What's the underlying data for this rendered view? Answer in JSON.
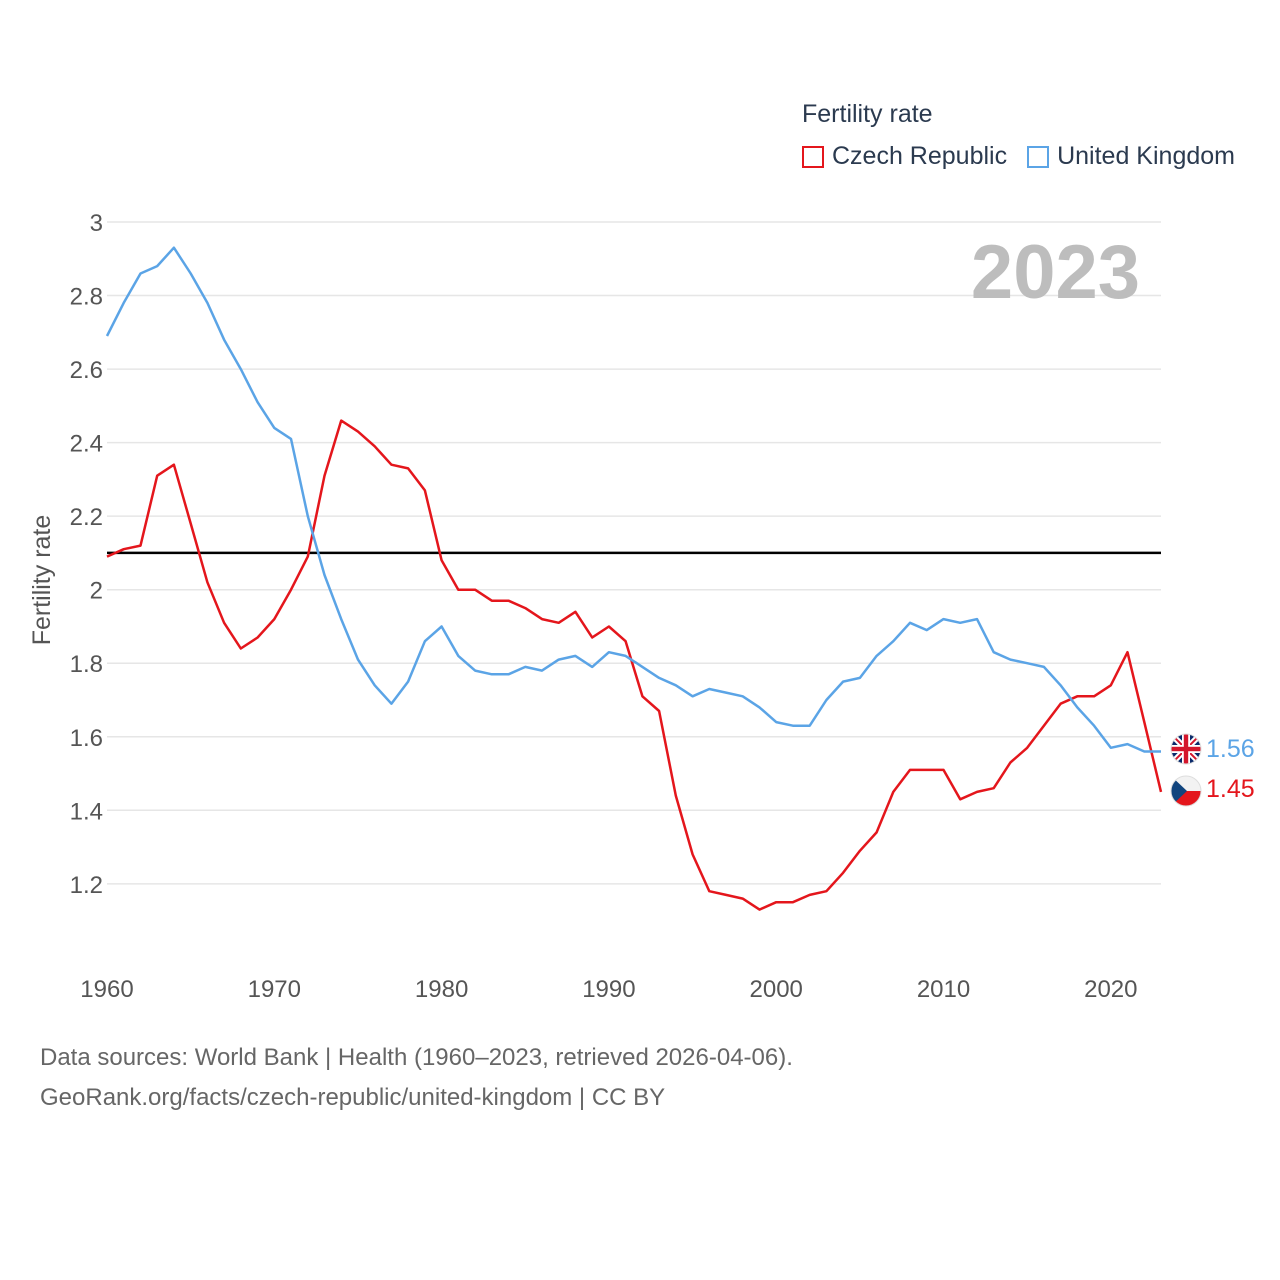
{
  "legend": {
    "title": "Fertility rate",
    "items": [
      {
        "label": "Czech Republic",
        "color": "#e4161c"
      },
      {
        "label": "United Kingdom",
        "color": "#5ba4e6"
      }
    ]
  },
  "year_label": "2023",
  "end_labels": {
    "uk": {
      "text": "1.56",
      "color": "#5ba4e6",
      "flag": "uk-flag-icon"
    },
    "cz": {
      "text": "1.45",
      "color": "#e4161c",
      "flag": "czech-flag-icon"
    }
  },
  "footer": {
    "line1": "Data sources: World Bank | Health (1960–2023, retrieved 2026-04-06).",
    "line2": "GeoRank.org/facts/czech-republic/united-kingdom | CC BY"
  },
  "chart_data": {
    "type": "line",
    "title": "Fertility rate",
    "xlabel": "",
    "ylabel": "Fertility rate",
    "xlim": [
      1960,
      2023
    ],
    "ylim": [
      1.05,
      3.0
    ],
    "x_ticks": [
      1960,
      1970,
      1980,
      1990,
      2000,
      2010,
      2020
    ],
    "y_ticks": [
      1.2,
      1.4,
      1.6,
      1.8,
      2,
      2.2,
      2.4,
      2.6,
      2.8,
      3
    ],
    "y_tick_labels": [
      "1.2",
      "1.4",
      "1.6",
      "1.8",
      "2",
      "2.2",
      "2.4",
      "2.6",
      "2.8",
      "3"
    ],
    "reference_line": {
      "y": 2.1,
      "color": "#000000"
    },
    "grid": true,
    "legend_position": "top-right",
    "x": [
      1960,
      1961,
      1962,
      1963,
      1964,
      1965,
      1966,
      1967,
      1968,
      1969,
      1970,
      1971,
      1972,
      1973,
      1974,
      1975,
      1976,
      1977,
      1978,
      1979,
      1980,
      1981,
      1982,
      1983,
      1984,
      1985,
      1986,
      1987,
      1988,
      1989,
      1990,
      1991,
      1992,
      1993,
      1994,
      1995,
      1996,
      1997,
      1998,
      1999,
      2000,
      2001,
      2002,
      2003,
      2004,
      2005,
      2006,
      2007,
      2008,
      2009,
      2010,
      2011,
      2012,
      2013,
      2014,
      2015,
      2016,
      2017,
      2018,
      2019,
      2020,
      2021,
      2022,
      2023
    ],
    "series": [
      {
        "name": "Czech Republic",
        "color": "#e4161c",
        "values": [
          2.09,
          2.11,
          2.12,
          2.31,
          2.34,
          2.18,
          2.02,
          1.91,
          1.84,
          1.87,
          1.92,
          2.0,
          2.09,
          2.31,
          2.46,
          2.43,
          2.39,
          2.34,
          2.33,
          2.27,
          2.08,
          2.0,
          2.0,
          1.97,
          1.97,
          1.95,
          1.92,
          1.91,
          1.94,
          1.87,
          1.9,
          1.86,
          1.71,
          1.67,
          1.44,
          1.28,
          1.18,
          1.17,
          1.16,
          1.13,
          1.15,
          1.15,
          1.17,
          1.18,
          1.23,
          1.29,
          1.34,
          1.45,
          1.51,
          1.51,
          1.51,
          1.43,
          1.45,
          1.46,
          1.53,
          1.57,
          1.63,
          1.69,
          1.71,
          1.71,
          1.74,
          1.83,
          1.64,
          1.45
        ]
      },
      {
        "name": "United Kingdom",
        "color": "#5ba4e6",
        "values": [
          2.69,
          2.78,
          2.86,
          2.88,
          2.93,
          2.86,
          2.78,
          2.68,
          2.6,
          2.51,
          2.44,
          2.41,
          2.2,
          2.04,
          1.92,
          1.81,
          1.74,
          1.69,
          1.75,
          1.86,
          1.9,
          1.82,
          1.78,
          1.77,
          1.77,
          1.79,
          1.78,
          1.81,
          1.82,
          1.79,
          1.83,
          1.82,
          1.79,
          1.76,
          1.74,
          1.71,
          1.73,
          1.72,
          1.71,
          1.68,
          1.64,
          1.63,
          1.63,
          1.7,
          1.75,
          1.76,
          1.82,
          1.86,
          1.91,
          1.89,
          1.92,
          1.91,
          1.92,
          1.83,
          1.81,
          1.8,
          1.79,
          1.74,
          1.68,
          1.63,
          1.57,
          1.58,
          1.56,
          1.56
        ]
      }
    ]
  }
}
